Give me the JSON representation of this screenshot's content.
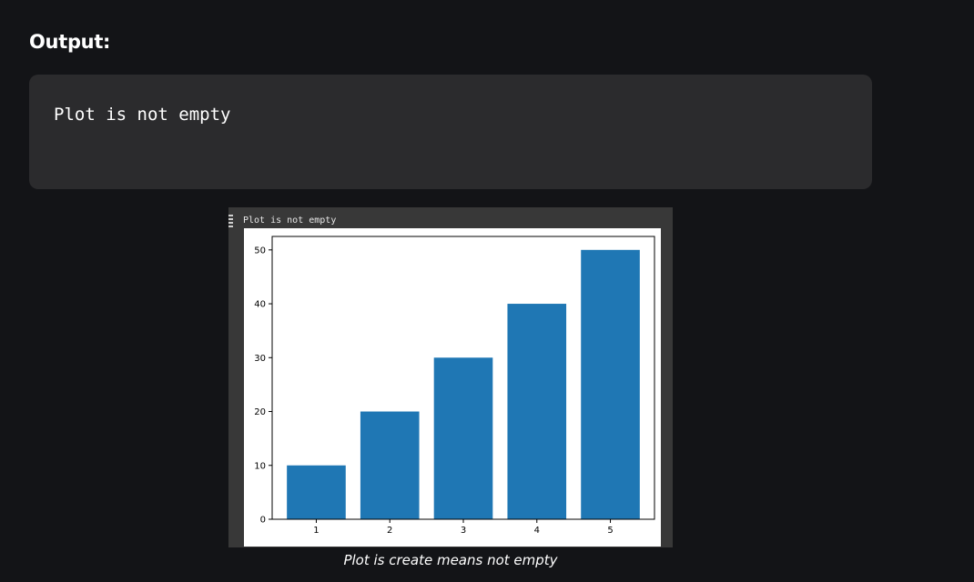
{
  "heading": "Output:",
  "code_output": "Plot is not empty",
  "notebook": {
    "cell_output_text": "Plot is not empty"
  },
  "caption": "Plot is create means not empty",
  "colors": {
    "bar": "#1f77b4",
    "page_background": "#131417",
    "code_background": "#2b2b2d"
  },
  "chart_data": {
    "type": "bar",
    "title": "",
    "xlabel": "",
    "ylabel": "",
    "categories": [
      "1",
      "2",
      "3",
      "4",
      "5"
    ],
    "values": [
      10,
      20,
      30,
      40,
      50
    ],
    "ylim": [
      0,
      52.5
    ],
    "yticks": [
      0,
      10,
      20,
      30,
      40,
      50
    ],
    "grid": false,
    "legend": "none"
  }
}
